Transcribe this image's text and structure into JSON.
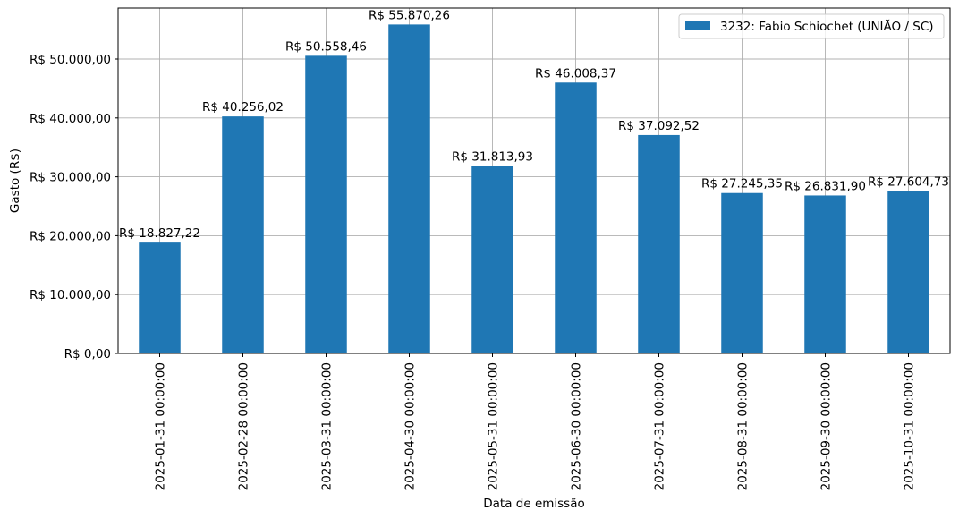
{
  "chart_data": {
    "type": "bar",
    "xlabel": "Data de emissão",
    "ylabel": "Gasto (R$)",
    "categories": [
      "2025-01-31 00:00:00",
      "2025-02-28 00:00:00",
      "2025-03-31 00:00:00",
      "2025-04-30 00:00:00",
      "2025-05-31 00:00:00",
      "2025-06-30 00:00:00",
      "2025-07-31 00:00:00",
      "2025-08-31 00:00:00",
      "2025-09-30 00:00:00",
      "2025-10-31 00:00:00"
    ],
    "series": [
      {
        "name": "3232: Fabio Schiochet (UNIÃO / SC)",
        "color": "#1f77b4",
        "values": [
          18827.22,
          40256.02,
          50558.46,
          55870.26,
          31813.93,
          46008.37,
          37092.52,
          27245.35,
          26831.9,
          27604.73
        ],
        "data_labels": [
          "R$ 18.827,22",
          "R$ 40.256,02",
          "R$ 50.558,46",
          "R$ 55.870,26",
          "R$ 31.813,93",
          "R$ 46.008,37",
          "R$ 37.092,52",
          "R$ 27.245,35",
          "R$ 26.831,90",
          "R$ 27.604,73"
        ]
      }
    ],
    "ylim": [
      0,
      58664.77
    ],
    "y_ticks": [
      0,
      10000,
      20000,
      30000,
      40000,
      50000
    ],
    "y_tick_labels": [
      "R$ 0,00",
      "R$ 10.000,00",
      "R$ 20.000,00",
      "R$ 30.000,00",
      "R$ 40.000,00",
      "R$ 50.000,00"
    ],
    "grid": true,
    "legend_position": "upper right"
  }
}
